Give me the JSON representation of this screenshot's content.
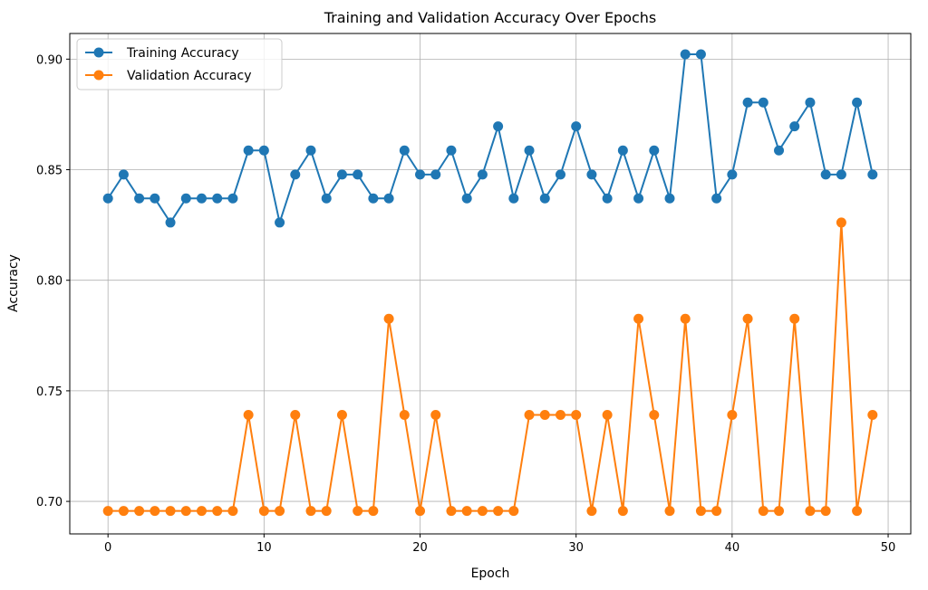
{
  "chart_data": {
    "type": "line",
    "title": "Training and Validation Accuracy Over Epochs",
    "xlabel": "Epoch",
    "ylabel": "Accuracy",
    "xlim": [
      -2.45,
      51.45
    ],
    "ylim": [
      0.6853,
      0.9116
    ],
    "xticks": [
      0,
      10,
      20,
      30,
      40,
      50
    ],
    "xtick_labels": [
      "0",
      "10",
      "20",
      "30",
      "40",
      "50"
    ],
    "yticks": [
      0.7,
      0.75,
      0.8,
      0.85,
      0.9
    ],
    "ytick_labels": [
      "0.70",
      "0.75",
      "0.80",
      "0.85",
      "0.90"
    ],
    "grid": true,
    "legend_position": "top-left",
    "x": [
      0,
      1,
      2,
      3,
      4,
      5,
      6,
      7,
      8,
      9,
      10,
      11,
      12,
      13,
      14,
      15,
      16,
      17,
      18,
      19,
      20,
      21,
      22,
      23,
      24,
      25,
      26,
      27,
      28,
      29,
      30,
      31,
      32,
      33,
      34,
      35,
      36,
      37,
      38,
      39,
      40,
      41,
      42,
      43,
      44,
      45,
      46,
      47,
      48,
      49
    ],
    "series": [
      {
        "name": "Training Accuracy",
        "color": "#1f77b4",
        "values": [
          0.837,
          0.8478,
          0.837,
          0.837,
          0.8261,
          0.837,
          0.837,
          0.837,
          0.837,
          0.8587,
          0.8587,
          0.8261,
          0.8478,
          0.8587,
          0.837,
          0.8478,
          0.8478,
          0.837,
          0.837,
          0.8587,
          0.8478,
          0.8478,
          0.8587,
          0.837,
          0.8478,
          0.8696,
          0.837,
          0.8587,
          0.837,
          0.8478,
          0.8696,
          0.8478,
          0.837,
          0.8587,
          0.837,
          0.8587,
          0.837,
          0.9022,
          0.9022,
          0.837,
          0.8478,
          0.8804,
          0.8804,
          0.8587,
          0.8696,
          0.8804,
          0.8478,
          0.8478,
          0.8804,
          0.8478
        ]
      },
      {
        "name": "Validation Accuracy",
        "color": "#ff7f0e",
        "values": [
          0.6957,
          0.6957,
          0.6957,
          0.6957,
          0.6957,
          0.6957,
          0.6957,
          0.6957,
          0.6957,
          0.7391,
          0.6957,
          0.6957,
          0.7391,
          0.6957,
          0.6957,
          0.7391,
          0.6957,
          0.6957,
          0.7826,
          0.7391,
          0.6957,
          0.7391,
          0.6957,
          0.6957,
          0.6957,
          0.6957,
          0.6957,
          0.7391,
          0.7391,
          0.7391,
          0.7391,
          0.6957,
          0.7391,
          0.6957,
          0.7826,
          0.7391,
          0.6957,
          0.7826,
          0.6957,
          0.6957,
          0.7391,
          0.7826,
          0.6957,
          0.6957,
          0.7826,
          0.6957,
          0.6957,
          0.8261,
          0.6957,
          0.7391
        ]
      }
    ]
  }
}
